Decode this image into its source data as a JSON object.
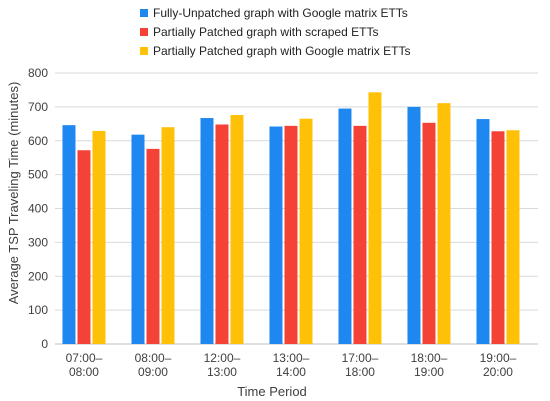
{
  "chart_data": {
    "type": "bar",
    "categories": [
      [
        "07:00–",
        "08:00"
      ],
      [
        "08:00–",
        "09:00"
      ],
      [
        "12:00–",
        "13:00"
      ],
      [
        "13:00–",
        "14:00"
      ],
      [
        "17:00–",
        "18:00"
      ],
      [
        "18:00–",
        "19:00"
      ],
      [
        "19:00–",
        "20:00"
      ]
    ],
    "series": [
      {
        "name": "Fully-Unpatched graph with Google matrix ETTs",
        "color": "#1e88f0",
        "values": [
          646,
          618,
          667,
          642,
          695,
          700,
          664
        ]
      },
      {
        "name": "Partially Patched graph with scraped ETTs",
        "color": "#f44336",
        "values": [
          572,
          576,
          648,
          644,
          644,
          653,
          628
        ]
      },
      {
        "name": "Partially Patched graph with Google matrix ETTs",
        "color": "#ffc107",
        "values": [
          629,
          640,
          676,
          665,
          743,
          711,
          631
        ]
      }
    ],
    "xlabel": "Time Period",
    "ylabel": "Average TSP Traveling Time (minutes)",
    "ylim": [
      0,
      800
    ],
    "yticks": [
      0,
      100,
      200,
      300,
      400,
      500,
      600,
      700,
      800
    ],
    "grid": true,
    "legend_position": "top"
  }
}
